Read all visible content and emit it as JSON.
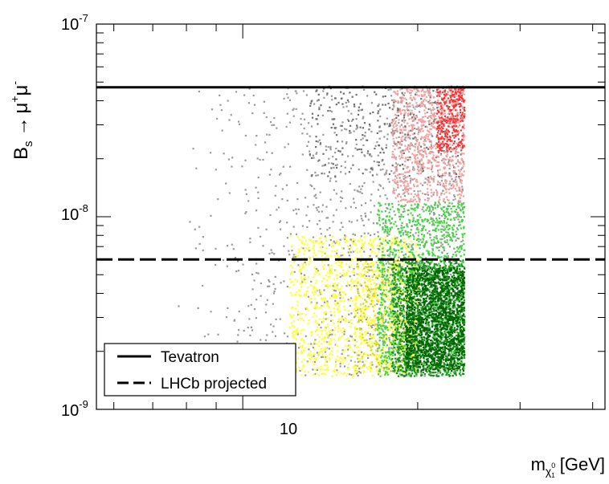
{
  "chart_data": {
    "type": "scatter",
    "title": "",
    "xlabel": {
      "main": "m",
      "sub": "χ",
      "sub_super": "0",
      "sub_sub": "1",
      "unit": "[GeV]"
    },
    "ylabel": {
      "main": "B",
      "sub": "s",
      "arrow": "→",
      "mu1": "μ",
      "mu1_sup": "+",
      "mu2": "μ",
      "mu2_sup": "-"
    },
    "x_scale": "log",
    "y_scale": "log",
    "xlim": [
      5.6,
      42
    ],
    "ylim": [
      1e-09,
      1e-07
    ],
    "x_ticks": [
      {
        "value": 10,
        "label": "10"
      }
    ],
    "y_ticks": [
      {
        "value": 1e-09,
        "base": "10",
        "exp": "-9"
      },
      {
        "value": 1e-08,
        "base": "10",
        "exp": "-8"
      },
      {
        "value": 1e-07,
        "base": "10",
        "exp": "-7"
      }
    ],
    "grid": false,
    "legend_placement": "bottom-left",
    "lines": [
      {
        "name": "Tevatron",
        "y": 4.7e-08,
        "style": "solid",
        "color": "#000000"
      },
      {
        "name": "LHCb projected",
        "y": 6e-09,
        "style": "dashed",
        "color": "#000000"
      }
    ],
    "point_regions": [
      {
        "color": "#9a9a9a",
        "x_range": [
          7.7,
          24.0
        ],
        "y_range": [
          1.5e-09,
          4.8e-08
        ],
        "count": 1400
      },
      {
        "color": "#6e6e6e",
        "x_range": [
          13.0,
          24.0
        ],
        "y_range": [
          1.6e-08,
          4.8e-08
        ],
        "count": 260
      },
      {
        "color": "#f3a0a0",
        "x_range": [
          18.0,
          24.0
        ],
        "y_range": [
          1.2e-08,
          4.8e-08
        ],
        "count": 850
      },
      {
        "color": "#ff3030",
        "x_range": [
          21.5,
          24.0
        ],
        "y_range": [
          2.2e-08,
          4.8e-08
        ],
        "count": 260
      },
      {
        "color": "#ffff33",
        "x_range": [
          12.0,
          20.0
        ],
        "y_range": [
          1.5e-09,
          8e-09
        ],
        "count": 1300
      },
      {
        "color": "#d8d820",
        "x_range": [
          15.5,
          20.0
        ],
        "y_range": [
          1.6e-09,
          6e-09
        ],
        "count": 300
      },
      {
        "color": "#44d444",
        "x_range": [
          17.0,
          24.0
        ],
        "y_range": [
          1.5e-09,
          1.2e-08
        ],
        "count": 1400
      },
      {
        "color": "#1f8f1f",
        "x_range": [
          18.0,
          24.0
        ],
        "y_range": [
          1.5e-09,
          6e-09
        ],
        "count": 1300
      },
      {
        "color": "#006400",
        "x_range": [
          19.0,
          24.0
        ],
        "y_range": [
          1.6e-09,
          5.5e-09
        ],
        "count": 1300
      }
    ],
    "legend": [
      {
        "label": "Tevatron",
        "style": "solid"
      },
      {
        "label": "LHCb projected",
        "style": "dashed"
      }
    ]
  }
}
